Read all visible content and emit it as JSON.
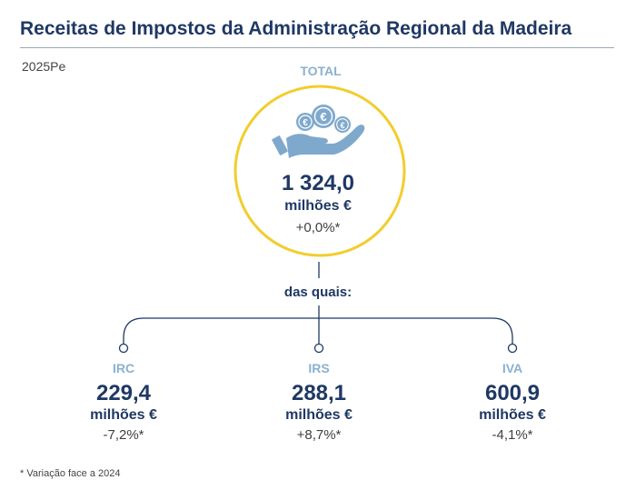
{
  "title": "Receitas de Impostos da Administração Regional da Madeira",
  "year": "2025Pe",
  "total": {
    "label": "TOTAL",
    "value": "1 324,0",
    "unit": "milhões €",
    "change": "+0,0%*",
    "icon": "hand-with-euro-coins-icon"
  },
  "connector_label": "das quais:",
  "branches": [
    {
      "name": "IRC",
      "value": "229,4",
      "unit": "milhões €",
      "change": "-7,2%*"
    },
    {
      "name": "IRS",
      "value": "288,1",
      "unit": "milhões €",
      "change": "+8,7%*"
    },
    {
      "name": "IVA",
      "value": "600,9",
      "unit": "milhões €",
      "change": "-4,1%*"
    }
  ],
  "footnote": "* Variação face a 2024",
  "colors": {
    "title": "#1f3864",
    "accent_label": "#8ab1cf",
    "circle_border": "#f2cd2e",
    "connector": "#1f3864",
    "icon": "#7fa9cc"
  }
}
